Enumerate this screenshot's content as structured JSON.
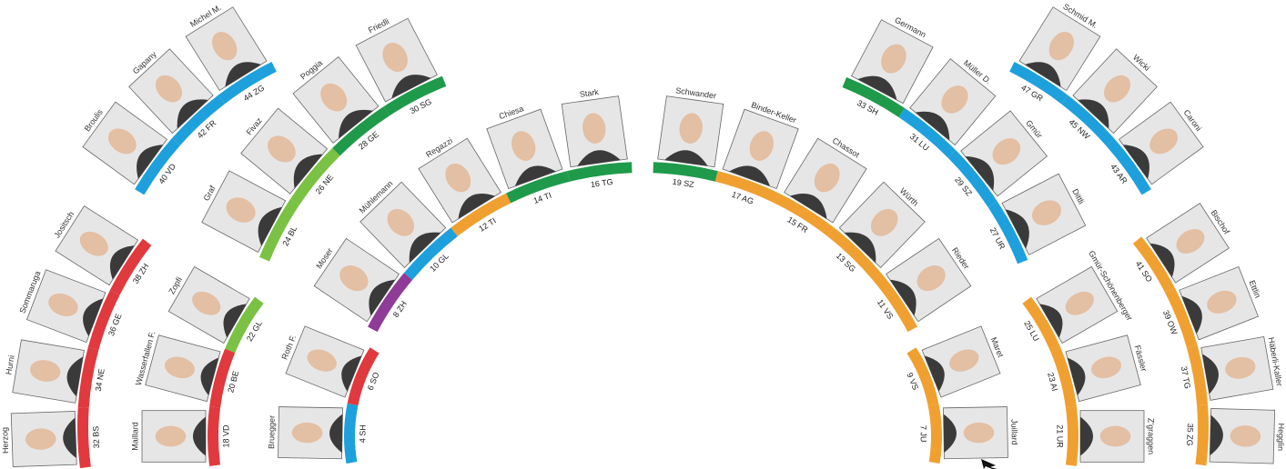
{
  "blocks": [
    {
      "seats": [
        {
          "name": "Herzog",
          "seat": "32 BS",
          "color": "#e0393e"
        },
        {
          "name": "Hurni",
          "seat": "34 NE",
          "color": "#e0393e"
        },
        {
          "name": "Sommaruga",
          "seat": "36 GE",
          "color": "#e0393e"
        },
        {
          "name": "Jositsch",
          "seat": "38 ZH",
          "color": "#e0393e"
        }
      ]
    },
    {
      "seats": [
        {
          "name": "Maillard",
          "seat": "18 VD",
          "color": "#e0393e"
        },
        {
          "name": "Wasserfallen F.",
          "seat": "20 BE",
          "color": "#e0393e"
        },
        {
          "name": "Zopfi",
          "seat": "22 GL",
          "color": "#7bc143"
        }
      ]
    },
    {
      "seats": [
        {
          "name": "Bruegger",
          "seat": "4 SH",
          "color": "#1ea0dc"
        },
        {
          "name": "Roth F.",
          "seat": "6 SO",
          "color": "#e0393e"
        }
      ]
    },
    {
      "seats": [
        {
          "name": "Broulis",
          "seat": "40 VD",
          "color": "#1ea0dc"
        },
        {
          "name": "Gapany",
          "seat": "42 FR",
          "color": "#1ea0dc"
        },
        {
          "name": "Michel M.",
          "seat": "44 ZG",
          "color": "#1ea0dc"
        }
      ]
    },
    {
      "seats": [
        {
          "name": "Graf",
          "seat": "24 BL",
          "color": "#7bc143"
        },
        {
          "name": "Fivaz",
          "seat": "26 NE",
          "color": "#7bc143"
        },
        {
          "name": "Poggia",
          "seat": "28 GE",
          "color": "#1f9a4a"
        },
        {
          "name": "Friedli",
          "seat": "30 SG",
          "color": "#1f9a4a"
        }
      ]
    },
    {
      "seats": [
        {
          "name": "Moser",
          "seat": "8 ZH",
          "color": "#8e3c97"
        },
        {
          "name": "Mühlemann",
          "seat": "10 GL",
          "color": "#1ea0dc"
        },
        {
          "name": "Regazzi",
          "seat": "12 TI",
          "color": "#f0a030"
        },
        {
          "name": "Chiesa",
          "seat": "14 TI",
          "color": "#1f9a4a"
        },
        {
          "name": "Stark",
          "seat": "16 TG",
          "color": "#1f9a4a"
        }
      ]
    },
    {
      "seats": [
        {
          "name": "Schwander",
          "seat": "19 SZ",
          "color": "#1f9a4a"
        },
        {
          "name": "Binder-Keller",
          "seat": "17 AG",
          "color": "#f0a030"
        },
        {
          "name": "Chassot",
          "seat": "15 FR",
          "color": "#f0a030"
        },
        {
          "name": "Würth",
          "seat": "13 SG",
          "color": "#f0a030"
        },
        {
          "name": "Rieder",
          "seat": "11 VS",
          "color": "#f0a030"
        }
      ]
    },
    {
      "seats": [
        {
          "name": "Germann",
          "seat": "33 SH",
          "color": "#1f9a4a"
        },
        {
          "name": "Müller D.",
          "seat": "31 LU",
          "color": "#1ea0dc"
        },
        {
          "name": "Gmür",
          "seat": "29 SZ",
          "color": "#1ea0dc"
        },
        {
          "name": "Dittli",
          "seat": "27 UR",
          "color": "#1ea0dc"
        }
      ]
    },
    {
      "seats": [
        {
          "name": "Schmid M.",
          "seat": "47 GR",
          "color": "#1ea0dc"
        },
        {
          "name": "Wicki",
          "seat": "45 NW",
          "color": "#1ea0dc"
        },
        {
          "name": "Caroni",
          "seat": "43 AR",
          "color": "#1ea0dc"
        }
      ]
    },
    {
      "seats": [
        {
          "name": "Bischof",
          "seat": "41 SO",
          "color": "#f0a030"
        },
        {
          "name": "Ettlin",
          "seat": "39 OW",
          "color": "#f0a030"
        },
        {
          "name": "Häberli-Kaller",
          "seat": "37 TG",
          "color": "#f0a030"
        },
        {
          "name": "Hegglin",
          "seat": "35 ZG",
          "color": "#f0a030"
        }
      ]
    },
    {
      "seats": [
        {
          "name": "Gmür-Schönenberger",
          "seat": "25 LU",
          "color": "#f0a030"
        },
        {
          "name": "Fässler",
          "seat": "23 AI",
          "color": "#f0a030"
        },
        {
          "name": "Z'graggen",
          "seat": "21 UR",
          "color": "#f0a030"
        }
      ]
    },
    {
      "seats": [
        {
          "name": "Maret",
          "seat": "9 VS",
          "color": "#f0a030"
        },
        {
          "name": "Juillard",
          "seat": "7 JU",
          "color": "#f0a030"
        }
      ]
    }
  ]
}
